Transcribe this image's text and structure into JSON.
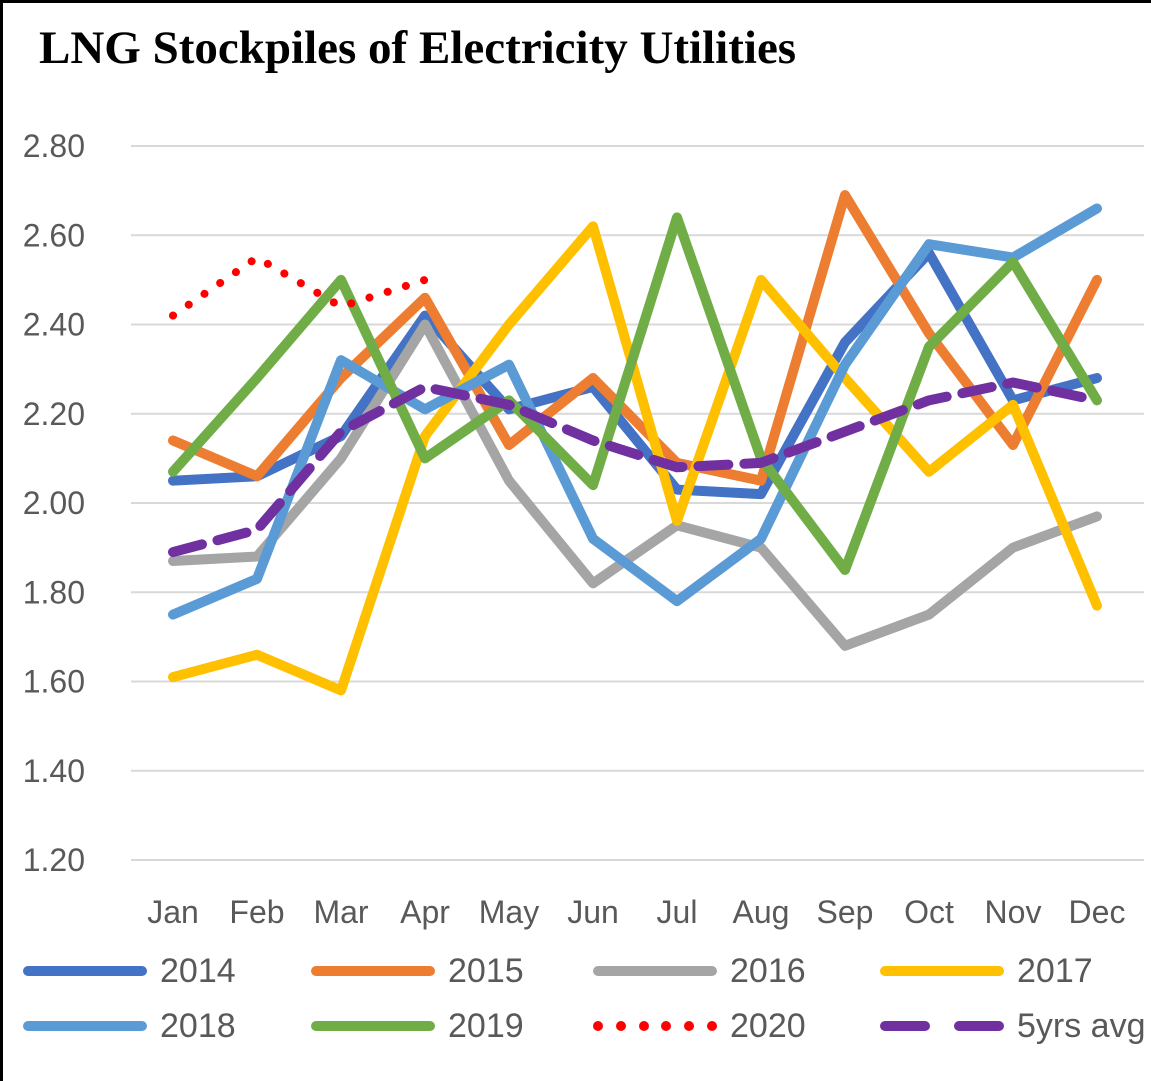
{
  "title": "LNG Stockpiles of Electricity Utilities",
  "colors": {
    "background": "#FFFFFF",
    "grid": "#D9D9D9",
    "axis_text": "#595959",
    "title_text": "#000000",
    "border": "#000000"
  },
  "chart_data": {
    "type": "line",
    "title": "LNG Stockpiles of Electricity Utilities",
    "xlabel": "",
    "ylabel": "",
    "categories": [
      "Jan",
      "Feb",
      "Mar",
      "Apr",
      "May",
      "Jun",
      "Jul",
      "Aug",
      "Sep",
      "Oct",
      "Nov",
      "Dec"
    ],
    "ylim": [
      1.2,
      2.8
    ],
    "ytick_step": 0.2,
    "ytick_labels": [
      "2.80",
      "2.60",
      "2.40",
      "2.20",
      "2.00",
      "1.80",
      "1.60",
      "1.40",
      "1.20"
    ],
    "grid": "horizontal",
    "legend_position": "bottom",
    "series": [
      {
        "name": "2014",
        "color": "#4472C4",
        "line_style": "solid",
        "values": [
          2.05,
          2.06,
          2.15,
          2.42,
          2.21,
          2.26,
          2.03,
          2.02,
          2.36,
          2.56,
          2.23,
          2.28
        ]
      },
      {
        "name": "2015",
        "color": "#ED7D31",
        "line_style": "solid",
        "values": [
          2.14,
          2.06,
          2.28,
          2.46,
          2.13,
          2.28,
          2.09,
          2.05,
          2.69,
          2.38,
          2.13,
          2.5
        ]
      },
      {
        "name": "2016",
        "color": "#A5A5A5",
        "line_style": "solid",
        "values": [
          1.87,
          1.88,
          2.1,
          2.4,
          2.05,
          1.82,
          1.95,
          1.9,
          1.68,
          1.75,
          1.9,
          1.97
        ]
      },
      {
        "name": "2017",
        "color": "#FFC000",
        "line_style": "solid",
        "values": [
          1.61,
          1.66,
          1.58,
          2.15,
          2.4,
          2.62,
          1.96,
          2.5,
          2.28,
          2.07,
          2.22,
          1.77
        ]
      },
      {
        "name": "2018",
        "color": "#5B9BD5",
        "line_style": "solid",
        "values": [
          1.75,
          1.83,
          2.32,
          2.21,
          2.31,
          1.92,
          1.78,
          1.92,
          2.31,
          2.58,
          2.55,
          2.66
        ]
      },
      {
        "name": "2019",
        "color": "#70AD47",
        "line_style": "solid",
        "values": [
          2.07,
          2.28,
          2.5,
          2.1,
          2.23,
          2.04,
          2.64,
          2.1,
          1.85,
          2.35,
          2.54,
          2.23
        ]
      },
      {
        "name": "2020",
        "color": "#FF0000",
        "line_style": "dotted",
        "values": [
          2.42,
          2.55,
          2.44,
          2.5,
          null,
          null,
          null,
          null,
          null,
          null,
          null,
          null
        ]
      },
      {
        "name": "5yrs avg",
        "color": "#7030A0",
        "line_style": "dashed",
        "values": [
          1.89,
          1.94,
          2.16,
          2.26,
          2.22,
          2.14,
          2.08,
          2.09,
          2.16,
          2.23,
          2.27,
          2.23
        ]
      }
    ]
  },
  "layout_note_values_visible_only": true
}
